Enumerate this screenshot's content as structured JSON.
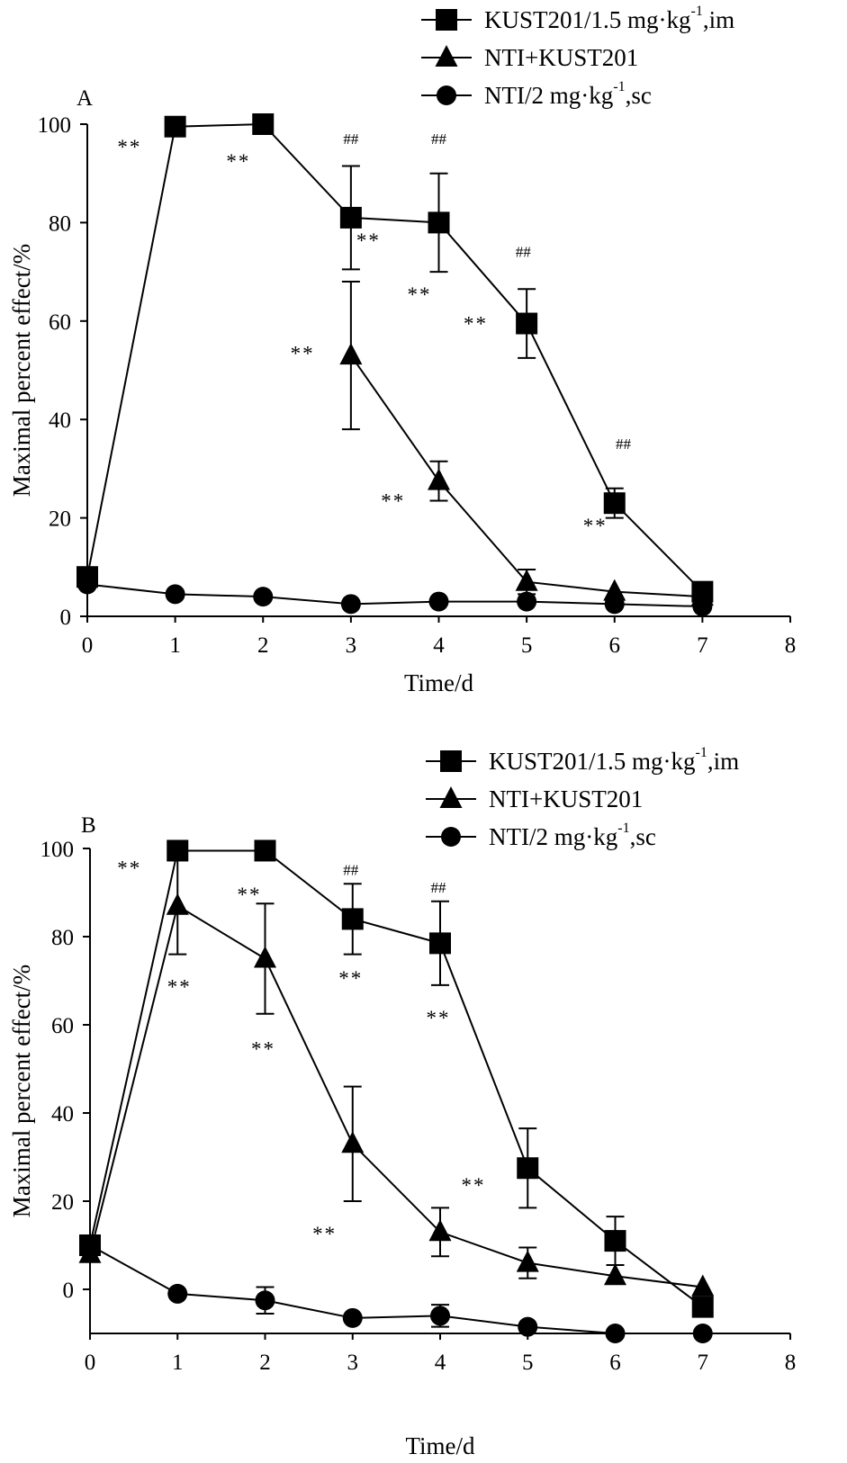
{
  "chart_data": [
    {
      "type": "line",
      "panel_label": "A",
      "xlabel": "Time/d",
      "ylabel": "Maximal percent effect/%",
      "xlim": [
        0,
        8
      ],
      "ylim": [
        0,
        100
      ],
      "x_ticks": [
        0,
        1,
        2,
        3,
        4,
        5,
        6,
        7,
        8
      ],
      "y_ticks": [
        0,
        20,
        40,
        60,
        80,
        100
      ],
      "x_tick_labels": [
        "0",
        "1",
        "2",
        "3",
        "4",
        "5",
        "6",
        "7",
        "8"
      ],
      "y_tick_labels": [
        "0",
        "20",
        "40",
        "60",
        "80",
        "100"
      ],
      "legend_position": "top-right",
      "series": [
        {
          "name": "KUST201/1.5 mg·kg-1,im",
          "legend_main": "KUST201/1.5 mg·kg",
          "legend_sup": "-1",
          "legend_tail": ",im",
          "marker": "square",
          "x": [
            0,
            1,
            2,
            3,
            4,
            5,
            6,
            7
          ],
          "values": [
            8,
            99.5,
            100,
            81,
            80,
            59.5,
            23,
            5
          ],
          "errors": [
            null,
            null,
            null,
            10.5,
            10,
            7,
            3,
            null
          ]
        },
        {
          "name": "NTI+KUST201",
          "legend_main": "NTI+KUST201",
          "legend_sup": "",
          "legend_tail": "",
          "marker": "triangle",
          "x": [
            3,
            4,
            5,
            6,
            7
          ],
          "values": [
            53,
            27.5,
            7,
            5,
            4
          ],
          "errors": [
            15,
            4,
            2.5,
            null,
            null
          ]
        },
        {
          "name": "NTI/2 mg·kg-1,sc",
          "legend_main": "NTI/2 mg·kg",
          "legend_sup": "-1",
          "legend_tail": ",sc",
          "marker": "circle",
          "x": [
            0,
            1,
            2,
            3,
            4,
            5,
            6,
            7
          ],
          "values": [
            6.5,
            4.5,
            4,
            2.5,
            3,
            3,
            2.5,
            2
          ],
          "errors": [
            null,
            null,
            null,
            null,
            null,
            null,
            null,
            null
          ]
        }
      ],
      "annotations": [
        {
          "text": "**",
          "x": 0.48,
          "y": 94
        },
        {
          "text": "**",
          "x": 1.72,
          "y": 91
        },
        {
          "text": "##",
          "x": 3.0,
          "y": 96
        },
        {
          "text": "**",
          "x": 3.2,
          "y": 75
        },
        {
          "text": "##",
          "x": 4.0,
          "y": 96
        },
        {
          "text": "**",
          "x": 3.78,
          "y": 64
        },
        {
          "text": "##",
          "x": 4.96,
          "y": 73
        },
        {
          "text": "**",
          "x": 4.42,
          "y": 58
        },
        {
          "text": "**",
          "x": 2.45,
          "y": 52
        },
        {
          "text": "**",
          "x": 3.48,
          "y": 22
        },
        {
          "text": "##",
          "x": 6.1,
          "y": 34
        },
        {
          "text": "**",
          "x": 5.78,
          "y": 17
        }
      ]
    },
    {
      "type": "line",
      "panel_label": "B",
      "xlabel": "Time/d",
      "ylabel": "Maximal percent effect/%",
      "xlim": [
        0,
        8
      ],
      "ylim": [
        -10,
        100
      ],
      "x_ticks": [
        0,
        1,
        2,
        3,
        4,
        5,
        6,
        7,
        8
      ],
      "y_ticks": [
        0,
        20,
        40,
        60,
        80,
        100
      ],
      "x_tick_labels": [
        "0",
        "1",
        "2",
        "3",
        "4",
        "5",
        "6",
        "7",
        "8"
      ],
      "y_tick_labels": [
        "0",
        "20",
        "40",
        "60",
        "80",
        "100"
      ],
      "legend_position": "top-right",
      "series": [
        {
          "name": "KUST201/1.5 mg·kg-1,im",
          "legend_main": "KUST201/1.5 mg·kg",
          "legend_sup": "-1",
          "legend_tail": ",im",
          "marker": "square",
          "x": [
            0,
            1,
            2,
            3,
            4,
            5,
            6,
            7
          ],
          "values": [
            10,
            99.5,
            99.5,
            84,
            78.5,
            27.5,
            11,
            -4
          ],
          "errors": [
            null,
            null,
            null,
            8,
            9.5,
            9,
            5.5,
            null
          ]
        },
        {
          "name": "NTI+KUST201",
          "legend_main": "NTI+KUST201",
          "legend_sup": "",
          "legend_tail": "",
          "marker": "triangle",
          "x": [
            0,
            1,
            2,
            3,
            4,
            5,
            6,
            7
          ],
          "values": [
            8,
            87,
            75,
            33,
            13,
            6,
            3,
            0.5
          ],
          "errors": [
            null,
            11,
            12.5,
            13,
            5.5,
            3.5,
            null,
            null
          ]
        },
        {
          "name": "NTI/2 mg·kg-1,sc",
          "legend_main": "NTI/2 mg·kg",
          "legend_sup": "-1",
          "legend_tail": ",sc",
          "marker": "circle",
          "x": [
            0,
            1,
            2,
            3,
            4,
            5,
            6,
            7
          ],
          "values": [
            10,
            -1,
            -2.5,
            -6.5,
            -6,
            -8.5,
            -10,
            -10
          ],
          "errors": [
            null,
            null,
            3,
            null,
            2.5,
            null,
            null,
            null
          ]
        }
      ],
      "annotations": [
        {
          "text": "**",
          "x": 0.45,
          "y": 94
        },
        {
          "text": "**",
          "x": 1.82,
          "y": 88
        },
        {
          "text": "##",
          "x": 2.98,
          "y": 94
        },
        {
          "text": "##",
          "x": 3.98,
          "y": 90
        },
        {
          "text": "**",
          "x": 1.02,
          "y": 67
        },
        {
          "text": "**",
          "x": 2.98,
          "y": 69
        },
        {
          "text": "**",
          "x": 1.98,
          "y": 53
        },
        {
          "text": "**",
          "x": 3.98,
          "y": 60
        },
        {
          "text": "**",
          "x": 2.68,
          "y": 11
        },
        {
          "text": "**",
          "x": 4.38,
          "y": 22
        }
      ]
    }
  ]
}
